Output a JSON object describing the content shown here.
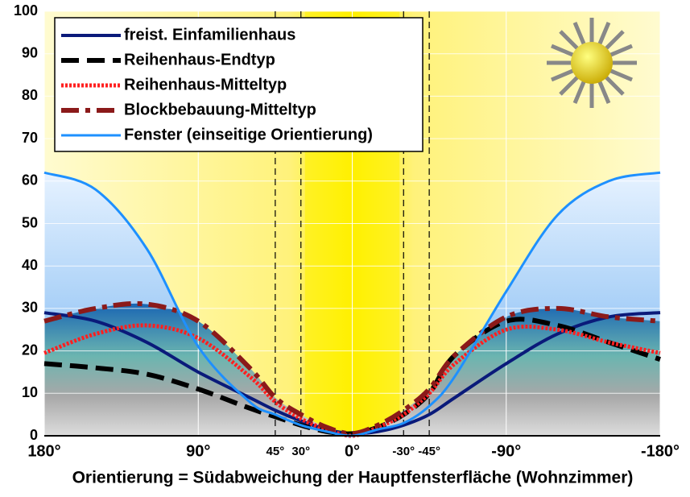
{
  "chart_data": {
    "type": "line",
    "xlabel": "Orientierung = Südabweichung der Hauptfensterfläche (Wohnzimmer)",
    "x": [
      180,
      150,
      120,
      90,
      60,
      45,
      30,
      15,
      0,
      -15,
      -30,
      -45,
      -60,
      -90,
      -120,
      -150,
      -180
    ],
    "series": [
      {
        "name": "freist. Einfamilienhaus",
        "color": "#0a1a7a",
        "style": "solid",
        "values": [
          29,
          27,
          22,
          15,
          9,
          6,
          3.5,
          1.5,
          0.5,
          1,
          2.5,
          5,
          9,
          17,
          24,
          28,
          29
        ]
      },
      {
        "name": "Reihenhaus-Endtyp",
        "color": "#000000",
        "style": "dashed",
        "values": [
          17,
          16,
          14.5,
          11,
          6.5,
          4.5,
          2.5,
          1,
          0.5,
          2,
          5,
          10,
          19,
          27,
          26,
          22,
          18
        ]
      },
      {
        "name": "Reihenhaus-Mitteltyp",
        "color": "#ff2020",
        "style": "dotted",
        "values": [
          19.5,
          24,
          26,
          23,
          14,
          8,
          4,
          1.5,
          0,
          2,
          5,
          10,
          17,
          25,
          25,
          22,
          19.5
        ]
      },
      {
        "name": "Blockbebauung-Mitteltyp",
        "color": "#8b1a1a",
        "style": "dashdot",
        "values": [
          27,
          30,
          31,
          27,
          16,
          9,
          5,
          2,
          0.5,
          2.5,
          6,
          11,
          19,
          28,
          30,
          28,
          27
        ]
      },
      {
        "name": "Fenster (einseitige Orientierung)",
        "color": "#1e90ff",
        "style": "solid",
        "values": [
          62,
          58,
          44,
          21,
          8,
          5,
          2.5,
          1,
          0,
          1.5,
          3,
          7,
          14,
          34,
          52,
          60,
          62
        ]
      }
    ],
    "xlim": [
      180,
      -180
    ],
    "xticks": [
      {
        "value": 180,
        "label": "180°"
      },
      {
        "value": 90,
        "label": "90°"
      },
      {
        "value": 45,
        "label": "45°"
      },
      {
        "value": 30,
        "label": "30°"
      },
      {
        "value": 0,
        "label": "0°"
      },
      {
        "value": -30,
        "label": "-30°"
      },
      {
        "value": -45,
        "label": "-45°"
      },
      {
        "value": -90,
        "label": "-90°"
      },
      {
        "value": -180,
        "label": "-180°"
      }
    ],
    "ylim": [
      0,
      100
    ],
    "yticks": [
      0,
      10,
      20,
      30,
      40,
      50,
      60,
      70,
      80,
      90,
      100
    ],
    "grid": true,
    "legend": "upper left"
  }
}
